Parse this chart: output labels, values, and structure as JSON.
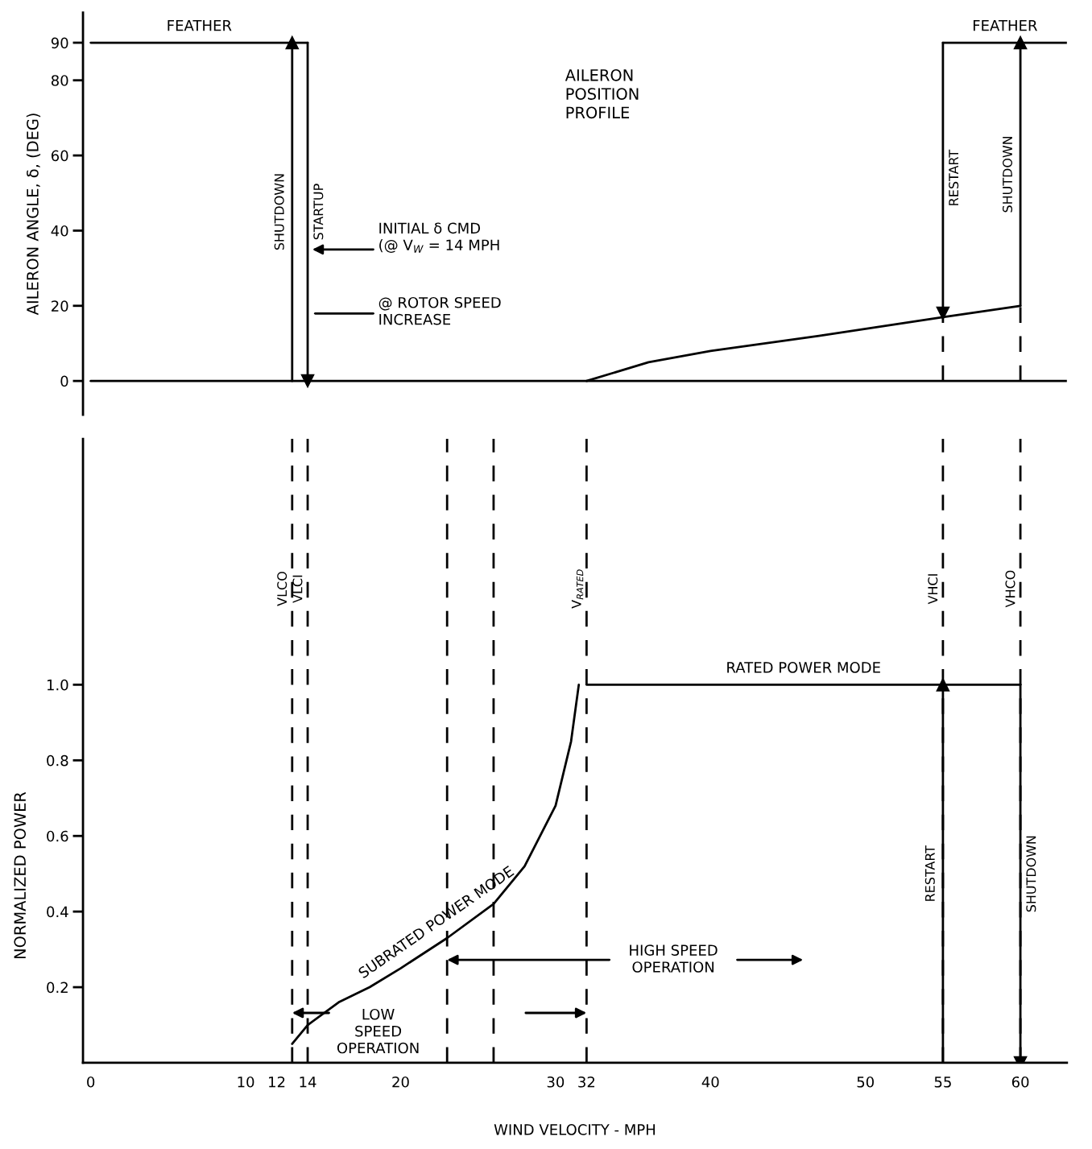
{
  "chart_data": [
    {
      "type": "line",
      "title": "AILERON\nPOSITION\nPROFILE",
      "ylabel": "AILERON ANGLE, δ, (DEG)",
      "xlim": [
        -0.5,
        63
      ],
      "ylim": [
        -9,
        98
      ],
      "yticks": [
        0,
        20,
        40,
        60,
        80,
        90
      ],
      "tick_labels": "y",
      "series": [
        {
          "color": "#000000",
          "line_style": "solid",
          "x": [
            0,
            63
          ],
          "values": [
            0,
            0
          ]
        },
        {
          "color": "#000000",
          "line_style": "solid",
          "x": [
            32,
            36,
            40,
            47,
            55,
            60
          ],
          "values": [
            0,
            5,
            8,
            12,
            17,
            20
          ]
        },
        {
          "name": "FEATHER",
          "color": "#000000",
          "line_style": "solid",
          "x": [
            0,
            14
          ],
          "values": [
            90,
            90
          ]
        },
        {
          "name": "FEATHER",
          "color": "#000000",
          "line_style": "solid",
          "x": [
            55,
            63
          ],
          "values": [
            90,
            90
          ]
        },
        {
          "name": "SHUTDOWN",
          "color": "#000000",
          "line_style": "solid",
          "marker": "triangle",
          "x": [
            13,
            13
          ],
          "values": [
            0,
            90
          ]
        },
        {
          "name": "STARTUP",
          "color": "#000000",
          "line_style": "solid",
          "marker": "triangle",
          "x": [
            14,
            14
          ],
          "values": [
            90,
            0
          ]
        },
        {
          "name": "RESTART",
          "color": "#000000",
          "line_style": "solid",
          "marker": "triangle",
          "x": [
            55,
            55
          ],
          "values": [
            90,
            18
          ]
        },
        {
          "name": "SHUTDOWN",
          "color": "#000000",
          "line_style": "solid",
          "marker": "triangle",
          "x": [
            60,
            60
          ],
          "values": [
            20,
            90
          ]
        },
        {
          "color": "#000000",
          "line_style": "dashed",
          "x": [
            55,
            55
          ],
          "values": [
            0,
            17
          ]
        },
        {
          "color": "#000000",
          "line_style": "dashed",
          "x": [
            60,
            60
          ],
          "values": [
            0,
            20
          ]
        }
      ],
      "annotations": [
        "INITIAL δ CMD\n(@ V$_{W}$ = 14 MPH",
        "@ ROTOR SPEED\nINCREASE"
      ]
    },
    {
      "type": "line",
      "xlabel": "WIND VELOCITY - MPH",
      "ylabel": "NORMALIZED POWER",
      "xlim": [
        -0.5,
        63
      ],
      "ylim": [
        0,
        1.65
      ],
      "xticks": [
        0,
        10,
        12,
        14,
        20,
        30,
        32,
        40,
        50,
        55,
        60
      ],
      "yticks": [
        0.2,
        0.4,
        0.6,
        0.8,
        {
          "value": 1.0,
          "label": "1.0"
        }
      ],
      "series": [
        {
          "name": "SUBRATED POWER MODE",
          "color": "#000000",
          "line_style": "solid",
          "x": [
            13,
            14,
            16,
            18,
            20,
            23,
            26,
            28,
            30,
            31,
            31.5
          ],
          "values": [
            0.05,
            0.1,
            0.16,
            0.2,
            0.25,
            0.33,
            0.42,
            0.52,
            0.68,
            0.85,
            1.0
          ]
        },
        {
          "name": "RATED POWER MODE",
          "color": "#000000",
          "line_style": "solid",
          "x": [
            32,
            60
          ],
          "values": [
            1.0,
            1.0
          ]
        },
        {
          "name": "RESTART",
          "color": "#000000",
          "line_style": "solid",
          "marker": "triangle",
          "x": [
            55,
            55
          ],
          "values": [
            0,
            1.0
          ]
        },
        {
          "name": "SHUTDOWN",
          "color": "#000000",
          "line_style": "solid",
          "marker": "triangle",
          "x": [
            60,
            60
          ],
          "values": [
            1.0,
            0
          ]
        }
      ],
      "ref_lines": [
        {
          "axis": "x",
          "value": 13,
          "label": "VLCO",
          "line_style": "dashed"
        },
        {
          "axis": "x",
          "value": 14,
          "label": "VLCI",
          "line_style": "dashed"
        },
        {
          "axis": "x",
          "value": 23,
          "line_style": "dashed"
        },
        {
          "axis": "x",
          "value": 26,
          "line_style": "dashed"
        },
        {
          "axis": "x",
          "value": 32,
          "label": "V$_{RATED}$",
          "line_style": "dashed"
        },
        {
          "axis": "x",
          "value": 55,
          "label": "VHCI",
          "line_style": "dashed"
        },
        {
          "axis": "x",
          "value": 60,
          "label": "VHCO",
          "line_style": "dashed"
        }
      ],
      "annotations": [
        "LOW\nSPEED\nOPERATION",
        "HIGH SPEED\nOPERATION"
      ]
    }
  ]
}
